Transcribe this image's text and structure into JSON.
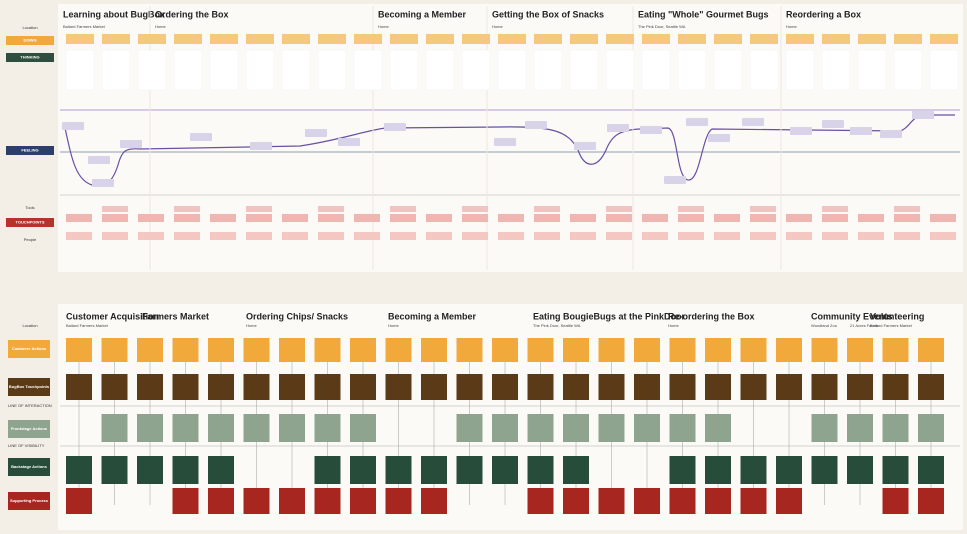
{
  "journey_map": {
    "row_labels": {
      "location": "Location",
      "doing": "DOING",
      "thinking": "THINKING",
      "feeling": "FEELING",
      "tools": "Tools",
      "touchpoints": "TOUCHPOINTS",
      "people": "People"
    },
    "stages": [
      {
        "title": "Learning about BugBox",
        "location": "Ballard Farmers Market"
      },
      {
        "title": "Ordering the Box",
        "location": "Home"
      },
      {
        "title": "Becoming a Member",
        "location": "Home"
      },
      {
        "title": "Getting the Box of Snacks",
        "location": "Home"
      },
      {
        "title": "Eating \"Whole\" Gourmet Bugs",
        "location": "The Pink Door, Seattle WA"
      },
      {
        "title": "Reordering a Box",
        "location": "Home"
      }
    ]
  },
  "blueprint": {
    "row_labels": {
      "location": "Location",
      "customer": "Customer Actions",
      "touchpoints": "BugBox Touchpoints",
      "line_interaction": "LINE OF INTERACTION",
      "frontstage": "Frontstage Actions",
      "line_visibility": "LINE OF VISIBILITY",
      "backstage": "Backstage Actions",
      "support": "Supporting Process"
    },
    "stages": [
      {
        "title": "Customer Acquisition",
        "location": "Ballard Farmers Market"
      },
      {
        "title": "Farmers Market",
        "location": ""
      },
      {
        "title": "Ordering Chips/ Snacks",
        "location": "Home"
      },
      {
        "title": "Becoming a Member",
        "location": "Home"
      },
      {
        "title": "Eating BougieBugs at the PinkDoor",
        "location": "The Pink Door, Seattle WA"
      },
      {
        "title": "Re-ordering the Box",
        "location": "Home"
      },
      {
        "title": "Community Events",
        "location": "Woodland Zoo"
      },
      {
        "title": "Volunteering",
        "location": "Ballard Farmers Market"
      }
    ],
    "extra_location": "21 Acres Farms"
  }
}
